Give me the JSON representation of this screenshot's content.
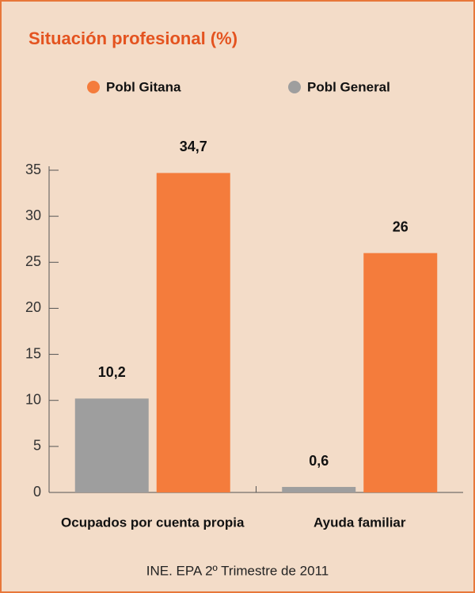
{
  "chart_data": {
    "type": "bar",
    "title": "Situación profesional (%)",
    "categories": [
      "Ocupados por cuenta propia",
      "Ayuda familiar"
    ],
    "series": [
      {
        "name": "Pobl Gitana",
        "color": "#f47c3c",
        "values": [
          34.7,
          26
        ],
        "value_labels": [
          "34,7",
          "26"
        ]
      },
      {
        "name": "Pobl General",
        "color": "#9e9e9e",
        "values": [
          10.2,
          0.6
        ],
        "value_labels": [
          "10,2",
          "0,6"
        ]
      }
    ],
    "ylim": [
      0,
      35
    ],
    "yticks": [
      0,
      5,
      10,
      15,
      20,
      25,
      30,
      35
    ],
    "source": "INE. EPA 2º Trimestre de 2011"
  }
}
